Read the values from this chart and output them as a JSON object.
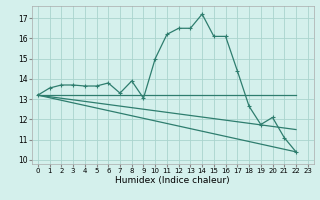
{
  "xlabel": "Humidex (Indice chaleur)",
  "xlim": [
    -0.5,
    23.5
  ],
  "ylim": [
    9.8,
    17.6
  ],
  "yticks": [
    10,
    11,
    12,
    13,
    14,
    15,
    16,
    17
  ],
  "xticks": [
    0,
    1,
    2,
    3,
    4,
    5,
    6,
    7,
    8,
    9,
    10,
    11,
    12,
    13,
    14,
    15,
    16,
    17,
    18,
    19,
    20,
    21,
    22,
    23
  ],
  "background_color": "#d4f0ec",
  "grid_color": "#aad4ce",
  "line_color": "#2e7d6e",
  "curve": {
    "x": [
      0,
      1,
      2,
      3,
      4,
      5,
      6,
      7,
      8,
      9,
      10,
      11,
      12,
      13,
      14,
      15,
      16,
      17,
      18,
      19,
      20,
      21,
      22
    ],
    "y": [
      13.2,
      13.55,
      13.7,
      13.7,
      13.65,
      13.65,
      13.8,
      13.3,
      13.9,
      13.05,
      15.0,
      16.2,
      16.5,
      16.5,
      17.2,
      16.1,
      16.1,
      14.4,
      12.65,
      11.75,
      12.1,
      11.1,
      10.4
    ]
  },
  "line_flat": {
    "x": [
      0,
      22
    ],
    "y": [
      13.2,
      13.2
    ]
  },
  "line_diag1": {
    "x": [
      0,
      22
    ],
    "y": [
      13.2,
      10.4
    ]
  },
  "line_diag2": {
    "x": [
      0,
      22
    ],
    "y": [
      13.2,
      11.5
    ]
  }
}
